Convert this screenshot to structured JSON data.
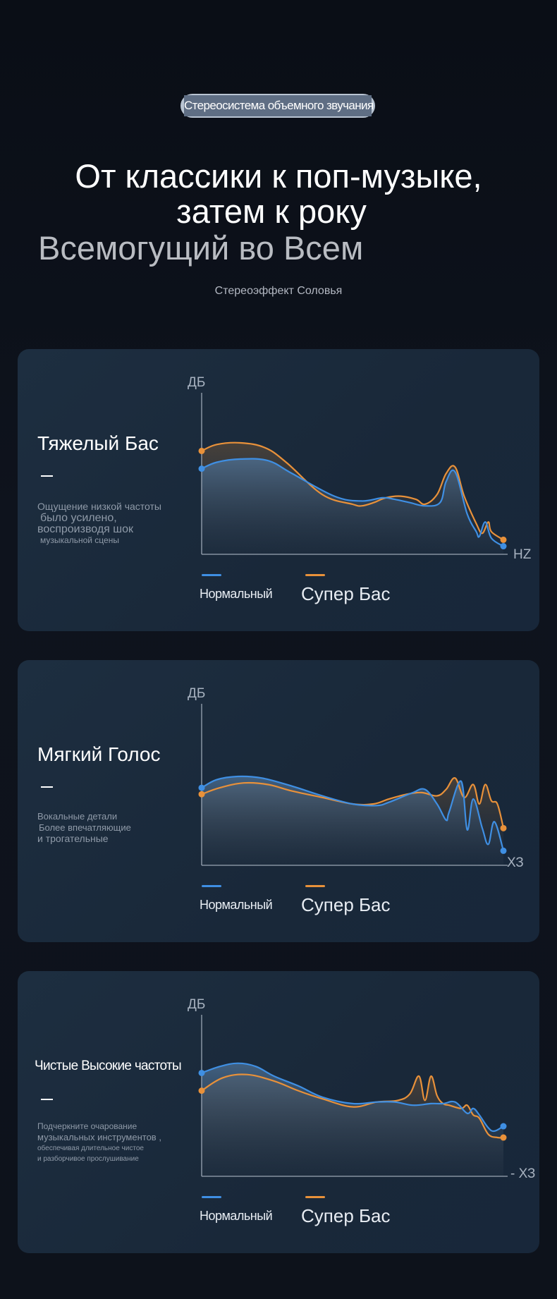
{
  "badge": "Стереосистема объемного звучания",
  "headline": {
    "line1": "От классики к поп-музыке,",
    "line2": "затем к року",
    "line3": "Всемогущий во Всем"
  },
  "subline": "Стереоэффект Соловья",
  "colors": {
    "normal": "#3f8fe3",
    "super": "#e8913a",
    "card": "#1a2a3b",
    "background": "#0c1018"
  },
  "legend": {
    "normal": "Нормальный",
    "super": "Супер Бас"
  },
  "cards": [
    {
      "title": "Тяжелый Бас",
      "dash": "–",
      "desc": [
        "Ощущение низкой частоты",
        "было усилено,",
        "воспроизводя шок",
        "музыкальной сцены"
      ],
      "ylabel": "ДБ",
      "xlabel": "HZ"
    },
    {
      "title": "Мягкий Голос",
      "dash": "–",
      "desc": [
        "Вокальные детали",
        "Более впечатляющие",
        "и трогательные"
      ],
      "ylabel": "ДБ",
      "xlabel": "ХЗ"
    },
    {
      "title": "Чистые Высокие частоты",
      "dash": "–",
      "desc": [
        "Подчеркните очарование",
        "музыкальных инструментов ,",
        "обеспечивая длительное чистое",
        "и разборчивое прослушивание"
      ],
      "ylabel": "ДБ",
      "xlabel": "- ХЗ"
    }
  ],
  "chart_data": [
    {
      "type": "line",
      "title": "Тяжелый Бас",
      "ylabel": "ДБ",
      "xlabel": "HZ",
      "grid": false,
      "legend": "bottom",
      "xlim": [
        0,
        100
      ],
      "ylim": [
        0,
        100
      ],
      "series": [
        {
          "name": "Нормальный",
          "x": [
            0,
            5,
            13,
            22,
            30,
            44,
            53,
            60,
            64,
            69,
            74,
            79,
            81,
            84,
            88,
            91,
            92,
            94,
            96,
            100
          ],
          "y": [
            53,
            57,
            59,
            58,
            50,
            36,
            33,
            35,
            34,
            32,
            30,
            32,
            45,
            51,
            25,
            14,
            11,
            20,
            10,
            5
          ]
        },
        {
          "name": "Супер Бас",
          "x": [
            0,
            5,
            13,
            21,
            28,
            40,
            50,
            53,
            57,
            61,
            66,
            71,
            74,
            78,
            81,
            84,
            87,
            91,
            93,
            95,
            96,
            100
          ],
          "y": [
            64,
            68,
            69,
            66,
            57,
            37,
            31,
            30,
            32,
            35,
            36,
            34,
            31,
            37,
            50,
            54,
            36,
            19,
            13,
            20,
            14,
            9
          ]
        }
      ]
    },
    {
      "type": "line",
      "title": "Мягкий Голос",
      "ylabel": "ДБ",
      "xlabel": "ХЗ",
      "grid": false,
      "legend": "bottom",
      "xlim": [
        0,
        100
      ],
      "ylim": [
        0,
        100
      ],
      "series": [
        {
          "name": "Нормальный",
          "x": [
            0,
            5,
            12,
            20,
            30,
            40,
            50,
            58,
            62,
            66,
            70,
            74,
            78,
            81,
            82,
            86,
            88,
            90,
            93,
            95,
            97,
            100
          ],
          "y": [
            48,
            53,
            55,
            54,
            49,
            43,
            38,
            37,
            39,
            42,
            45,
            47,
            38,
            28,
            33,
            52,
            22,
            41,
            23,
            13,
            27,
            9
          ]
        },
        {
          "name": "Супер Бас",
          "x": [
            0,
            6,
            14,
            22,
            30,
            40,
            50,
            57,
            62,
            68,
            73,
            78,
            81,
            84,
            87,
            90,
            92,
            94,
            96,
            98,
            100
          ],
          "y": [
            44,
            48,
            51,
            50,
            46,
            42,
            38,
            38,
            41,
            44,
            45,
            43,
            47,
            54,
            42,
            50,
            38,
            50,
            40,
            38,
            23
          ]
        }
      ]
    },
    {
      "type": "line",
      "title": "Чистые Высокие частоты",
      "ylabel": "ДБ",
      "xlabel": "- ХЗ",
      "grid": false,
      "legend": "bottom",
      "xlim": [
        0,
        100
      ],
      "ylim": [
        0,
        100
      ],
      "series": [
        {
          "name": "Нормальный",
          "x": [
            0,
            6,
            12,
            18,
            24,
            32,
            40,
            50,
            58,
            64,
            70,
            76,
            80,
            84,
            88,
            90,
            92,
            95,
            97,
            100
          ],
          "y": [
            64,
            68,
            70,
            68,
            62,
            56,
            49,
            45,
            46,
            46,
            44,
            45,
            45,
            46,
            39,
            42,
            38,
            30,
            28,
            31
          ]
        },
        {
          "name": "Супер Бас",
          "x": [
            0,
            7,
            15,
            24,
            32,
            40,
            50,
            58,
            65,
            69,
            72,
            74,
            76,
            78,
            80,
            82,
            86,
            88,
            90,
            92,
            95,
            98,
            100
          ],
          "y": [
            53,
            61,
            63,
            59,
            53,
            48,
            43,
            46,
            47,
            51,
            62,
            47,
            62,
            50,
            45,
            44,
            42,
            44,
            38,
            36,
            26,
            24,
            24
          ]
        }
      ]
    }
  ]
}
